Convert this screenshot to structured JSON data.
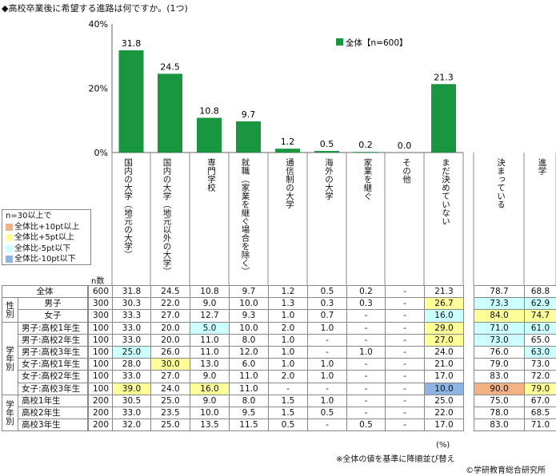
{
  "title": "◆高校卒業後に希望する進路は何ですか。(1つ)",
  "chart_data": {
    "type": "bar",
    "title": "◆高校卒業後に希望する進路は何ですか。(1つ)",
    "legend": "全体【n=600】",
    "legend_position": "top-right",
    "ylim": [
      0,
      40
    ],
    "yticks": [
      "0%",
      "20%",
      "40%"
    ],
    "categories": [
      "国内の大学(地元の大学)",
      "国内の大学(地元以外の大学)",
      "専門学校",
      "就職(家業を継ぐ場合を除く)",
      "通信制の大学",
      "海外の大学",
      "家業を継ぐ",
      "その他",
      "まだ決めていない"
    ],
    "values": [
      31.8,
      24.5,
      10.8,
      9.7,
      1.2,
      0.5,
      0.2,
      0.0,
      21.3
    ],
    "value_labels": [
      "31.8",
      "24.5",
      "10.8",
      "9.7",
      "1.2",
      "0.5",
      "0.2",
      "0.0",
      "21.3"
    ],
    "color": "#1a9641"
  },
  "extra_cols": [
    "決まっている",
    "進学"
  ],
  "vlabels": [
    "国内の大学（地元の大学）",
    "国内の大学（地元以外の大学）",
    "専門学校",
    "就職（家業を継ぐ場合を除く）",
    "通信制の大学",
    "海外の大学",
    "家業を継ぐ",
    "その他",
    "まだ決めていない",
    "決まっている",
    "進学"
  ],
  "legend_box": {
    "heading": "n=30以上で",
    "items": [
      {
        "label": "全体比+10pt以上",
        "color": "#f4b183"
      },
      {
        "label": "全体比+5pt以上",
        "color": "#ffff99"
      },
      {
        "label": "全体比-5pt以下",
        "color": "#ccffff"
      },
      {
        "label": "全体比-10pt以下",
        "color": "#8db4e2"
      }
    ]
  },
  "n_label": "n数",
  "groups": [
    "性別",
    "学年別",
    "学年別"
  ],
  "table": {
    "rows": [
      {
        "label": "全体",
        "n": "600",
        "cells": [
          "31.8",
          "24.5",
          "10.8",
          "9.7",
          "1.2",
          "0.5",
          "0.2",
          "-",
          "21.3",
          "78.7",
          "68.8"
        ],
        "hl": [
          0,
          0,
          0,
          0,
          0,
          0,
          0,
          0,
          0,
          0,
          0
        ]
      },
      {
        "label": "男子",
        "n": "300",
        "cells": [
          "30.3",
          "22.0",
          "9.0",
          "10.0",
          "1.3",
          "0.3",
          "0.3",
          "-",
          "26.7",
          "73.3",
          "62.9"
        ],
        "hl": [
          0,
          0,
          0,
          0,
          0,
          0,
          0,
          0,
          2,
          3,
          3
        ]
      },
      {
        "label": "女子",
        "n": "300",
        "cells": [
          "33.3",
          "27.0",
          "12.7",
          "9.3",
          "1.0",
          "0.7",
          "-",
          "-",
          "16.0",
          "84.0",
          "74.7"
        ],
        "hl": [
          0,
          0,
          0,
          0,
          0,
          0,
          0,
          0,
          3,
          2,
          2
        ]
      },
      {
        "label": "男子:高校1年生",
        "n": "100",
        "cells": [
          "33.0",
          "20.0",
          "5.0",
          "10.0",
          "2.0",
          "1.0",
          "-",
          "-",
          "29.0",
          "71.0",
          "61.0"
        ],
        "hl": [
          0,
          0,
          3,
          0,
          0,
          0,
          0,
          0,
          2,
          3,
          3
        ]
      },
      {
        "label": "男子:高校2年生",
        "n": "100",
        "cells": [
          "33.0",
          "20.0",
          "11.0",
          "8.0",
          "1.0",
          "-",
          "-",
          "-",
          "27.0",
          "73.0",
          "65.0"
        ],
        "hl": [
          0,
          0,
          0,
          0,
          0,
          0,
          0,
          0,
          2,
          3,
          0
        ]
      },
      {
        "label": "男子:高校3年生",
        "n": "100",
        "cells": [
          "25.0",
          "26.0",
          "11.0",
          "12.0",
          "1.0",
          "-",
          "1.0",
          "-",
          "24.0",
          "76.0",
          "63.0"
        ],
        "hl": [
          3,
          0,
          0,
          0,
          0,
          0,
          0,
          0,
          0,
          0,
          3
        ]
      },
      {
        "label": "女子:高校1年生",
        "n": "100",
        "cells": [
          "28.0",
          "30.0",
          "13.0",
          "6.0",
          "1.0",
          "1.0",
          "-",
          "-",
          "21.0",
          "79.0",
          "73.0"
        ],
        "hl": [
          0,
          2,
          0,
          0,
          0,
          0,
          0,
          0,
          0,
          0,
          0
        ]
      },
      {
        "label": "女子:高校2年生",
        "n": "100",
        "cells": [
          "33.0",
          "27.0",
          "9.0",
          "11.0",
          "2.0",
          "1.0",
          "-",
          "-",
          "17.0",
          "83.0",
          "72.0"
        ],
        "hl": [
          0,
          0,
          0,
          0,
          0,
          0,
          0,
          0,
          0,
          0,
          0
        ]
      },
      {
        "label": "女子:高校3年生",
        "n": "100",
        "cells": [
          "39.0",
          "24.0",
          "16.0",
          "11.0",
          "-",
          "-",
          "-",
          "-",
          "10.0",
          "90.0",
          "79.0"
        ],
        "hl": [
          2,
          0,
          2,
          0,
          0,
          0,
          0,
          0,
          4,
          1,
          2
        ]
      },
      {
        "label": "高校1年生",
        "n": "200",
        "cells": [
          "30.5",
          "25.0",
          "9.0",
          "8.0",
          "1.5",
          "1.0",
          "-",
          "-",
          "25.0",
          "75.0",
          "67.0"
        ],
        "hl": [
          0,
          0,
          0,
          0,
          0,
          0,
          0,
          0,
          0,
          0,
          0
        ]
      },
      {
        "label": "高校2年生",
        "n": "200",
        "cells": [
          "33.0",
          "23.5",
          "10.0",
          "9.5",
          "1.5",
          "0.5",
          "-",
          "-",
          "22.0",
          "78.0",
          "68.5"
        ],
        "hl": [
          0,
          0,
          0,
          0,
          0,
          0,
          0,
          0,
          0,
          0,
          0
        ]
      },
      {
        "label": "高校3年生",
        "n": "200",
        "cells": [
          "32.0",
          "25.0",
          "13.5",
          "11.5",
          "0.5",
          "-",
          "0.5",
          "-",
          "17.0",
          "83.0",
          "71.0"
        ],
        "hl": [
          0,
          0,
          0,
          0,
          0,
          0,
          0,
          0,
          0,
          0,
          0
        ]
      }
    ]
  },
  "pct_unit": "(%)",
  "note": "※全体の値を基準に降順並び替え",
  "credit": "©学研教育総合研究所"
}
